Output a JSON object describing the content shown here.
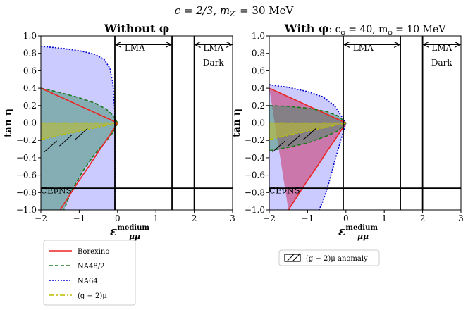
{
  "figure": {
    "suptitle": "c = 2/3, m",
    "suptitle_sub": "Z′",
    "suptitle_tail": " = 30 MeV"
  },
  "chart_data": [
    {
      "type": "area",
      "title_bold": "Without φ",
      "title_rest": "",
      "xlabel": "ε",
      "xlabel_sup": "medium",
      "xlabel_sub": "μμ",
      "ylabel": "tan η",
      "xlim": [
        -2,
        3
      ],
      "ylim": [
        -1,
        1
      ],
      "xticks": [
        -2,
        -1,
        0,
        1,
        2,
        3
      ],
      "xtick_labels": [
        "−2",
        "−1",
        "0",
        "1",
        "2",
        "3"
      ],
      "yticks": [
        1.0,
        0.8,
        0.6,
        0.4,
        0.2,
        0.0,
        -0.2,
        -0.4,
        -0.6,
        -0.8,
        -1.0
      ],
      "ytick_labels": [
        "1.0",
        "0.8",
        "0.6",
        "0.4",
        "0.2",
        "0.0",
        "−0.2",
        "−0.4",
        "−0.6",
        "−0.8",
        "−1.0"
      ],
      "vlines": [
        -0.07,
        1.42,
        2.0
      ],
      "hline": -0.75,
      "annotations": [
        {
          "text": "LMA",
          "x": 0.45,
          "y": 0.83
        },
        {
          "text": "LMA",
          "x": 2.5,
          "y": 0.83
        },
        {
          "text": "Dark",
          "x": 2.5,
          "y": 0.66
        },
        {
          "text": "CEνNS",
          "x": -1.6,
          "y": -0.81
        }
      ],
      "arrows": [
        {
          "x_from": -0.07,
          "x_to": 1.42,
          "y": 0.9
        },
        {
          "x_from": 2.0,
          "x_to": 3.0,
          "y": 0.9
        }
      ],
      "series": [
        {
          "name": "NA64",
          "fill": "#8c8cff",
          "fill_opacity": 0.45,
          "stroke": "#0000cc",
          "dash": "2,2",
          "upper": [
            [
              -2,
              0.88
            ],
            [
              -1.5,
              0.86
            ],
            [
              -1,
              0.83
            ],
            [
              -0.6,
              0.79
            ],
            [
              -0.35,
              0.73
            ],
            [
              -0.2,
              0.63
            ],
            [
              -0.12,
              0.45
            ],
            [
              -0.08,
              0.2
            ],
            [
              -0.06,
              0
            ]
          ],
          "lower": [
            [
              -0.06,
              0
            ],
            [
              -0.06,
              -1.0
            ],
            [
              -2,
              -1.0
            ]
          ]
        },
        {
          "name": "NA48/2",
          "fill": "#2e8b57",
          "fill_opacity": 0.45,
          "stroke": "#1a7a1a",
          "dash": "5,3",
          "upper": [
            [
              -2,
              0.4
            ],
            [
              -1.5,
              0.35
            ],
            [
              -1,
              0.29
            ],
            [
              -0.6,
              0.23
            ],
            [
              -0.3,
              0.16
            ],
            [
              -0.1,
              0.08
            ],
            [
              0,
              0
            ]
          ],
          "lower": [
            [
              0,
              0
            ],
            [
              -0.1,
              -0.1
            ],
            [
              -0.3,
              -0.21
            ],
            [
              -0.6,
              -0.36
            ],
            [
              -0.9,
              -0.55
            ],
            [
              -1.2,
              -0.78
            ],
            [
              -1.4,
              -1.0
            ],
            [
              -2,
              -1.0
            ]
          ]
        },
        {
          "name": "Borexino",
          "fill": "#cc3366",
          "fill_opacity": 0.0,
          "stroke": "#ee2222",
          "dash": "",
          "upper": [
            [
              -2,
              0.4
            ],
            [
              -1.5,
              0.3
            ],
            [
              -1,
              0.2
            ],
            [
              -0.5,
              0.1
            ],
            [
              0,
              0
            ]
          ],
          "lower": [
            [
              0,
              0
            ],
            [
              -0.25,
              -0.17
            ],
            [
              -0.5,
              -0.33
            ],
            [
              -0.75,
              -0.5
            ],
            [
              -1,
              -0.66
            ],
            [
              -1.25,
              -0.83
            ],
            [
              -1.5,
              -1.0
            ]
          ]
        },
        {
          "name": "(g − 2)μ",
          "fill": "#bbbb33",
          "fill_opacity": 0.6,
          "stroke": "#bbbb00",
          "dash": "7,3,2,3",
          "upper": [
            [
              -2,
              0.0
            ],
            [
              0,
              0.0
            ]
          ],
          "lower": [
            [
              0,
              0.0
            ],
            [
              -2,
              -0.19
            ]
          ]
        }
      ]
    },
    {
      "type": "area",
      "title_bold": "With φ",
      "title_rest": ": c",
      "title_sub": "φ",
      "title_rest2": " = 40, m",
      "title_sub2": "φ",
      "title_rest3": " = 10 MeV",
      "xlabel": "ε",
      "xlabel_sup": "medium",
      "xlabel_sub": "μμ",
      "ylabel": "tan η",
      "xlim": [
        -2,
        3
      ],
      "ylim": [
        -1,
        1
      ],
      "xticks": [
        -2,
        -1,
        0,
        1,
        2,
        3
      ],
      "xtick_labels": [
        "−2",
        "−1",
        "0",
        "1",
        "2",
        "3"
      ],
      "yticks": [
        1.0,
        0.8,
        0.6,
        0.4,
        0.2,
        0.0,
        -0.2,
        -0.4,
        -0.6,
        -0.8,
        -1.0
      ],
      "ytick_labels": [
        "1.0",
        "0.8",
        "0.6",
        "0.4",
        "0.2",
        "0.0",
        "−0.2",
        "−0.4",
        "−0.6",
        "−0.8",
        "−1.0"
      ],
      "vlines": [
        -0.07,
        1.42,
        2.0
      ],
      "hline": -0.75,
      "annotations": [
        {
          "text": "LMA",
          "x": 0.45,
          "y": 0.83
        },
        {
          "text": "LMA",
          "x": 2.5,
          "y": 0.83
        },
        {
          "text": "Dark",
          "x": 2.5,
          "y": 0.66
        },
        {
          "text": "CEνNS",
          "x": -1.6,
          "y": -0.81
        }
      ],
      "arrows": [
        {
          "x_from": -0.07,
          "x_to": 1.42,
          "y": 0.9
        },
        {
          "x_from": 2.0,
          "x_to": 3.0,
          "y": 0.9
        }
      ],
      "series": [
        {
          "name": "NA64",
          "fill": "#8c8cff",
          "fill_opacity": 0.45,
          "stroke": "#0000cc",
          "dash": "2,2",
          "upper": [
            [
              -2,
              0.44
            ],
            [
              -1.5,
              0.41
            ],
            [
              -1,
              0.36
            ],
            [
              -0.6,
              0.3
            ],
            [
              -0.3,
              0.2
            ],
            [
              -0.15,
              0.1
            ],
            [
              0,
              0
            ]
          ],
          "lower": [
            [
              0,
              0
            ],
            [
              -0.1,
              -0.15
            ],
            [
              -0.2,
              -0.3
            ],
            [
              -0.3,
              -0.45
            ],
            [
              -0.45,
              -0.7
            ],
            [
              -0.6,
              -0.9
            ],
            [
              -0.7,
              -1.0
            ],
            [
              -2,
              -1.0
            ]
          ]
        },
        {
          "name": "Borexino",
          "fill": "#cc3366",
          "fill_opacity": 0.55,
          "stroke": "#ee2222",
          "dash": "",
          "upper": [
            [
              -2,
              0.4
            ],
            [
              -1.5,
              0.3
            ],
            [
              -1,
              0.2
            ],
            [
              -0.5,
              0.1
            ],
            [
              0,
              0
            ]
          ],
          "lower": [
            [
              0,
              0
            ],
            [
              -0.25,
              -0.17
            ],
            [
              -0.5,
              -0.33
            ],
            [
              -0.75,
              -0.5
            ],
            [
              -1,
              -0.66
            ],
            [
              -1.25,
              -0.83
            ],
            [
              -1.5,
              -1.0
            ]
          ]
        },
        {
          "name": "NA48/2",
          "fill": "#2e8b57",
          "fill_opacity": 0.45,
          "stroke": "#1a7a1a",
          "dash": "5,3",
          "upper": [
            [
              -2,
              0.2
            ],
            [
              -1.5,
              0.19
            ],
            [
              -1,
              0.17
            ],
            [
              -0.5,
              0.13
            ],
            [
              -0.2,
              0.08
            ],
            [
              0,
              0
            ]
          ],
          "lower": [
            [
              0,
              0
            ],
            [
              -0.2,
              -0.09
            ],
            [
              -0.5,
              -0.15
            ],
            [
              -1,
              -0.23
            ],
            [
              -1.5,
              -0.28
            ],
            [
              -2,
              -0.32
            ]
          ]
        },
        {
          "name": "(g − 2)μ",
          "fill": "#bbbb33",
          "fill_opacity": 0.6,
          "stroke": "#bbbb00",
          "dash": "7,3,2,3",
          "upper": [
            [
              -2,
              0.0
            ],
            [
              0,
              0.0
            ]
          ],
          "lower": [
            [
              0,
              0.0
            ],
            [
              -2,
              -0.19
            ]
          ]
        }
      ]
    }
  ],
  "legend_left": {
    "items": [
      {
        "label": "Borexino",
        "color": "#ee2222",
        "dash": ""
      },
      {
        "label": "NA48/2",
        "color": "#1a7a1a",
        "dash": "5,3"
      },
      {
        "label": "NA64",
        "color": "#0000cc",
        "dash": "2,2"
      },
      {
        "label": "(g − 2)μ",
        "color": "#bbbb00",
        "dash": "7,3,2,3"
      }
    ]
  },
  "legend_right": {
    "label": "(g − 2)μ anomaly"
  }
}
